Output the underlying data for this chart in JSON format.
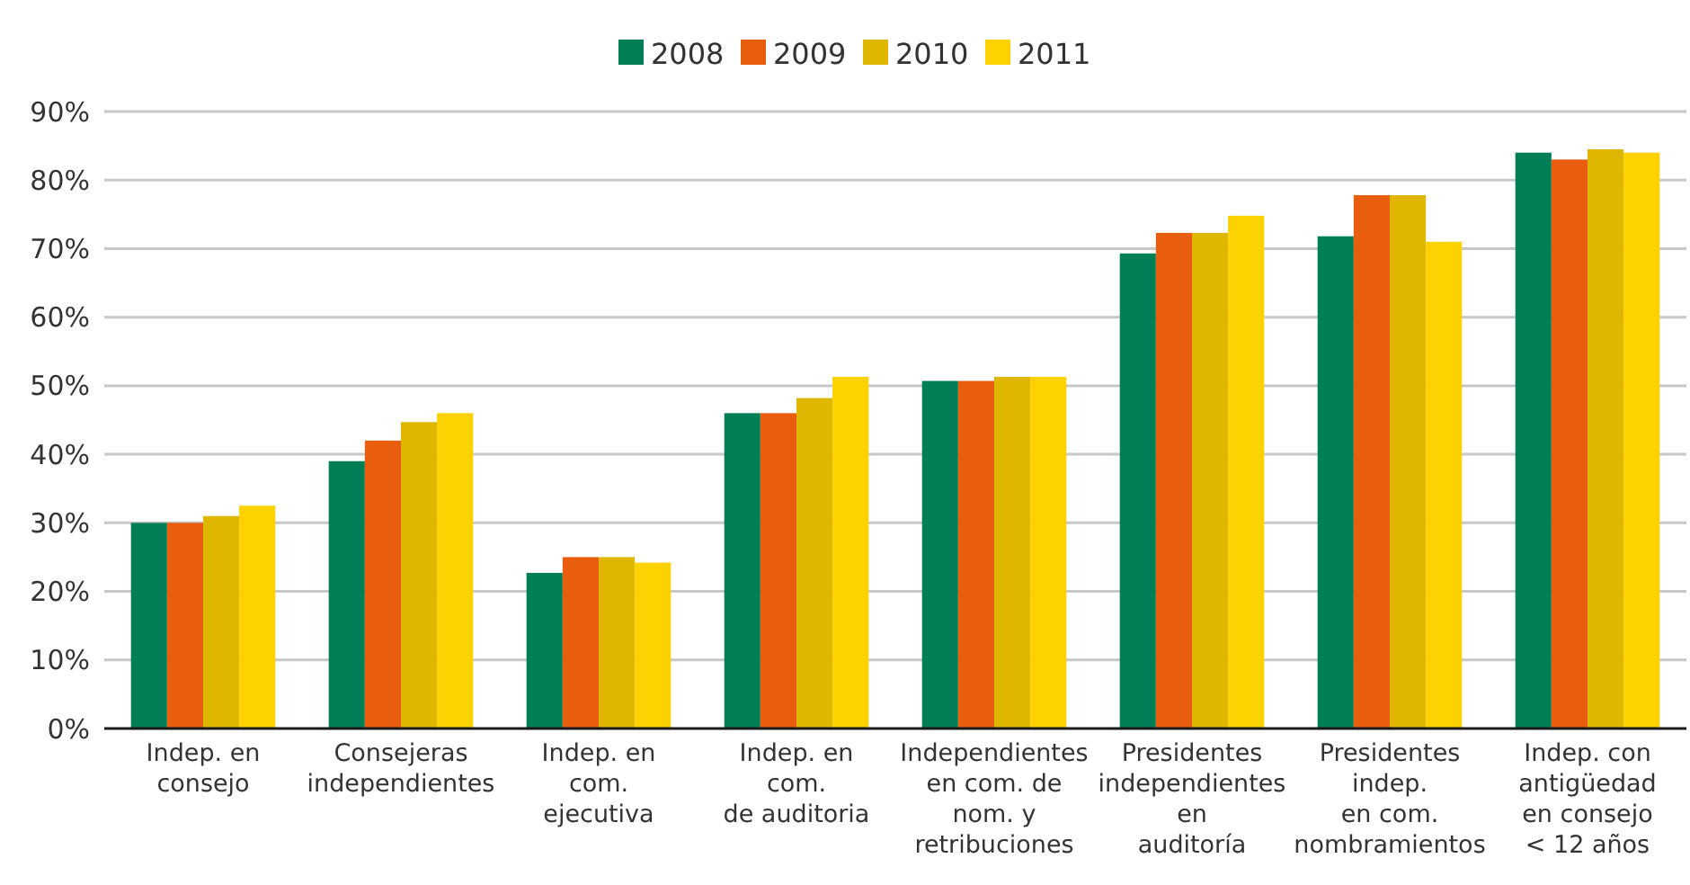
{
  "chart_data": {
    "type": "bar",
    "categories": [
      "Indep. en\nconsejo",
      "Consejeras\nindependientes",
      "Indep. en\ncom.\nejecutiva",
      "Indep. en\ncom.\nde auditoria",
      "Independientes\nen com. de\nnom. y\nretribuciones",
      "Presidentes\nindependientes\nen\nauditoría",
      "Presidentes\nindep.\nen com.\nnombramientos",
      "Indep. con\nantigüedad\nen consejo\n< 12 años"
    ],
    "series": [
      {
        "name": "2008",
        "color": "#007f56",
        "values": [
          30,
          39,
          22.7,
          46,
          50.7,
          69.3,
          71.8,
          84
        ]
      },
      {
        "name": "2009",
        "color": "#e95d0f",
        "values": [
          30,
          42,
          25,
          46,
          50.7,
          72.3,
          77.8,
          83
        ]
      },
      {
        "name": "2010",
        "color": "#dfb700",
        "values": [
          31,
          44.7,
          25,
          48.2,
          51.3,
          72.3,
          77.8,
          84.5
        ]
      },
      {
        "name": "2011",
        "color": "#fed100",
        "values": [
          32.5,
          46,
          24.2,
          51.3,
          51.3,
          74.8,
          71,
          84
        ]
      }
    ],
    "ylim": [
      0,
      90
    ],
    "yticks": [
      {
        "value": 0,
        "label": "0%"
      },
      {
        "value": 10,
        "label": "10%"
      },
      {
        "value": 20,
        "label": "20%"
      },
      {
        "value": 30,
        "label": "30%"
      },
      {
        "value": 40,
        "label": "40%"
      },
      {
        "value": 50,
        "label": "50%"
      },
      {
        "value": 60,
        "label": "60%"
      },
      {
        "value": 70,
        "label": "70%"
      },
      {
        "value": 80,
        "label": "80%"
      },
      {
        "value": 90,
        "label": "90%"
      }
    ],
    "grid": "y",
    "legend": "top"
  }
}
